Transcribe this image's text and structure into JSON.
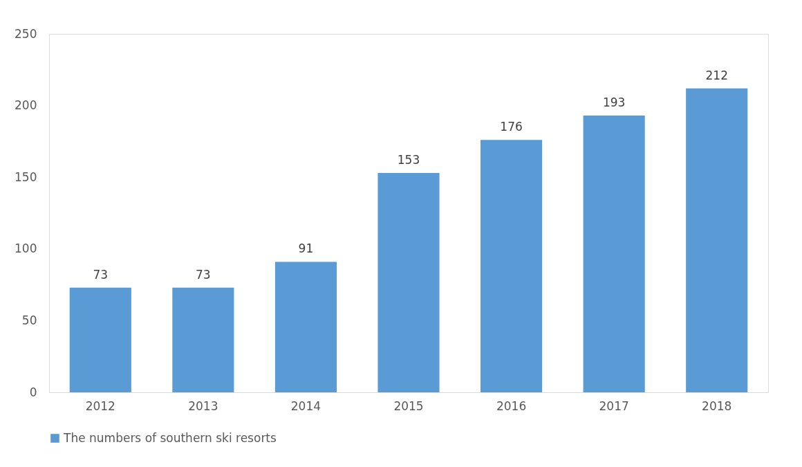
{
  "chart_data": {
    "type": "bar",
    "categories": [
      "2012",
      "2013",
      "2014",
      "2015",
      "2016",
      "2017",
      "2018"
    ],
    "series": [
      {
        "name": "The numbers of southern ski resorts",
        "color": "#5b9bd5",
        "values": [
          73,
          73,
          91,
          153,
          176,
          193,
          212
        ]
      }
    ],
    "ylim": [
      0,
      250
    ],
    "yticks": [
      0,
      50,
      100,
      150,
      200,
      250
    ],
    "grid": false,
    "legend": "bottom",
    "data_labels": true
  }
}
